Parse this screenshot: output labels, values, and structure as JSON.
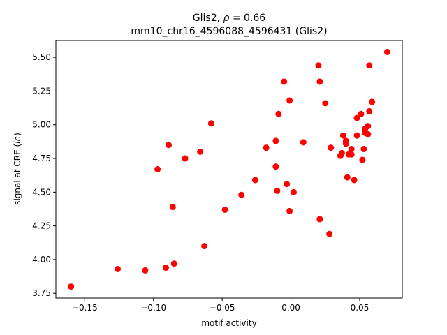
{
  "chart_data": {
    "type": "scatter",
    "title_line1": "Glis2, ",
    "title_rho_symbol": "ρ",
    "title_rho_value": " = 0.66",
    "title_line2": "mm10_chr16_4596088_4596431 (Glis2)",
    "xlabel": "motif activity",
    "ylabel_prefix": "signal at CRE (",
    "ylabel_italic": "ln",
    "ylabel_suffix": ")",
    "xlim": [
      -0.171,
      0.081
    ],
    "ylim": [
      3.715,
      5.625
    ],
    "x_ticks": [
      -0.15,
      -0.1,
      -0.05,
      0.0,
      0.05
    ],
    "x_tick_labels": [
      "−0.15",
      "−0.10",
      "−0.05",
      "0.00",
      "0.05"
    ],
    "y_ticks": [
      3.75,
      4.0,
      4.25,
      4.5,
      4.75,
      5.0,
      5.25,
      5.5
    ],
    "y_tick_labels": [
      "3.75",
      "4.00",
      "4.25",
      "4.50",
      "4.75",
      "5.00",
      "5.25",
      "5.50"
    ],
    "marker_color": "#ff0000",
    "points": [
      {
        "x": -0.16,
        "y": 3.8
      },
      {
        "x": -0.126,
        "y": 3.93
      },
      {
        "x": -0.106,
        "y": 3.92
      },
      {
        "x": -0.091,
        "y": 3.94
      },
      {
        "x": -0.085,
        "y": 3.97
      },
      {
        "x": -0.097,
        "y": 4.67
      },
      {
        "x": -0.089,
        "y": 4.85
      },
      {
        "x": -0.086,
        "y": 4.39
      },
      {
        "x": -0.077,
        "y": 4.75
      },
      {
        "x": -0.066,
        "y": 4.8
      },
      {
        "x": -0.063,
        "y": 4.1
      },
      {
        "x": -0.058,
        "y": 5.01
      },
      {
        "x": -0.048,
        "y": 4.37
      },
      {
        "x": -0.036,
        "y": 4.48
      },
      {
        "x": -0.026,
        "y": 4.59
      },
      {
        "x": -0.018,
        "y": 4.83
      },
      {
        "x": -0.011,
        "y": 4.88
      },
      {
        "x": -0.011,
        "y": 4.69
      },
      {
        "x": -0.01,
        "y": 4.51
      },
      {
        "x": -0.009,
        "y": 5.08
      },
      {
        "x": -0.005,
        "y": 5.32
      },
      {
        "x": -0.003,
        "y": 4.56
      },
      {
        "x": -0.001,
        "y": 5.18
      },
      {
        "x": -0.001,
        "y": 4.36
      },
      {
        "x": 0.002,
        "y": 4.5
      },
      {
        "x": 0.009,
        "y": 4.87
      },
      {
        "x": 0.02,
        "y": 5.44
      },
      {
        "x": 0.021,
        "y": 5.32
      },
      {
        "x": 0.021,
        "y": 4.3
      },
      {
        "x": 0.025,
        "y": 5.16
      },
      {
        "x": 0.028,
        "y": 4.19
      },
      {
        "x": 0.029,
        "y": 4.83
      },
      {
        "x": 0.036,
        "y": 4.77
      },
      {
        "x": 0.037,
        "y": 4.79
      },
      {
        "x": 0.038,
        "y": 4.92
      },
      {
        "x": 0.04,
        "y": 4.88
      },
      {
        "x": 0.04,
        "y": 4.86
      },
      {
        "x": 0.041,
        "y": 4.61
      },
      {
        "x": 0.042,
        "y": 4.78
      },
      {
        "x": 0.044,
        "y": 4.82
      },
      {
        "x": 0.044,
        "y": 4.78
      },
      {
        "x": 0.046,
        "y": 4.59
      },
      {
        "x": 0.048,
        "y": 5.05
      },
      {
        "x": 0.048,
        "y": 4.92
      },
      {
        "x": 0.051,
        "y": 5.08
      },
      {
        "x": 0.052,
        "y": 4.74
      },
      {
        "x": 0.053,
        "y": 4.82
      },
      {
        "x": 0.054,
        "y": 4.94
      },
      {
        "x": 0.054,
        "y": 4.97
      },
      {
        "x": 0.056,
        "y": 4.99
      },
      {
        "x": 0.056,
        "y": 4.93
      },
      {
        "x": 0.057,
        "y": 5.1
      },
      {
        "x": 0.057,
        "y": 5.44
      },
      {
        "x": 0.059,
        "y": 5.17
      },
      {
        "x": 0.07,
        "y": 5.54
      }
    ]
  }
}
